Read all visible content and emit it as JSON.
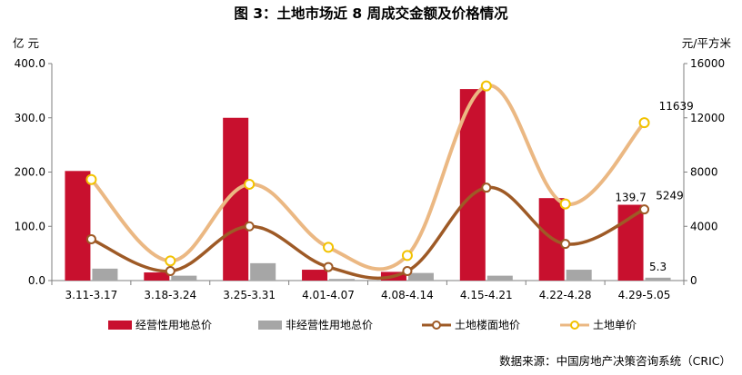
{
  "title": "图 3：土地市场近 8 周成交金额及价格情况",
  "source": "数据来源：中国房地产决策咨询系统（CRIC）",
  "colors": {
    "operating_bar": "#C8102E",
    "nonoperating_bar": "#A6A6A6",
    "floor_price_line": "#9E5A26",
    "unit_price_line": "#EBB883",
    "marker_fill": "#FFFFFF",
    "unit_marker_stroke": "#F2C200"
  },
  "chart_data": {
    "type": "bar",
    "title": "图 3：土地市场近 8 周成交金额及价格情况",
    "categories": [
      "3.11-3.17",
      "3.18-3.24",
      "3.25-3.31",
      "4.01-4.07",
      "4.08-4.14",
      "4.15-4.21",
      "4.22-4.28",
      "4.29-5.05"
    ],
    "left_axis": {
      "unit": "亿 元",
      "ylim": [
        0,
        400
      ],
      "ticks": [
        "0.0",
        "100.0",
        "200.0",
        "300.0",
        "400.0"
      ]
    },
    "right_axis": {
      "unit": "元/平方米",
      "ylim": [
        0,
        16000
      ],
      "ticks": [
        "0",
        "4000",
        "8000",
        "12000",
        "16000"
      ]
    },
    "grid": false,
    "legend_position": "bottom",
    "series": [
      {
        "name": "经营性用地总价",
        "kind": "bar",
        "axis": "left",
        "values": [
          202,
          15,
          300,
          20,
          16,
          353,
          152,
          139.7
        ],
        "labels": [
          "",
          "",
          "",
          "",
          "",
          "",
          "",
          "139.7"
        ]
      },
      {
        "name": "非经营性用地总价",
        "kind": "bar",
        "axis": "left",
        "values": [
          22,
          9,
          32,
          3,
          14,
          9,
          20,
          5.3
        ],
        "labels": [
          "",
          "",
          "",
          "",
          "",
          "",
          "",
          "5.3"
        ]
      },
      {
        "name": "土地楼面地价",
        "kind": "line",
        "axis": "right",
        "values": [
          3050,
          700,
          4000,
          1000,
          700,
          6850,
          2700,
          5249
        ],
        "labels": [
          "",
          "",
          "",
          "",
          "",
          "",
          "",
          "5249"
        ]
      },
      {
        "name": "土地单价",
        "kind": "line",
        "axis": "right",
        "values": [
          7450,
          1450,
          7100,
          2450,
          1850,
          14350,
          5650,
          11639
        ],
        "labels": [
          "",
          "",
          "",
          "",
          "",
          "",
          "",
          "11639"
        ]
      }
    ]
  }
}
